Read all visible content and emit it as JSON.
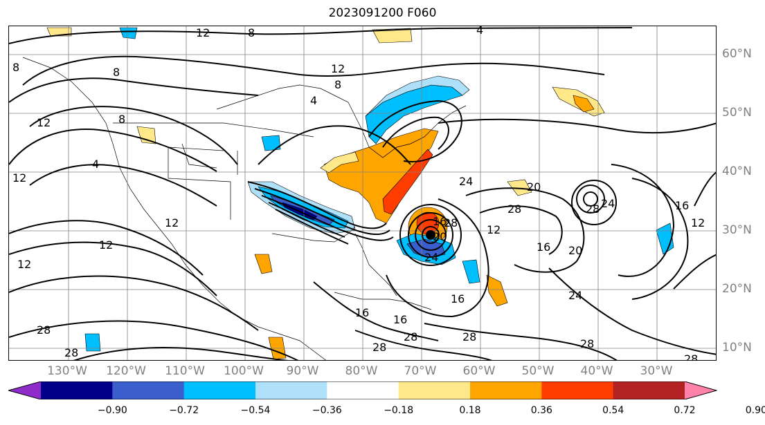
{
  "title": "2023091200 F060",
  "longitude_labels": [
    "130°W",
    "120°W",
    "110°W",
    "100°W",
    "90°W",
    "80°W",
    "70°W",
    "60°W",
    "50°W",
    "40°W",
    "30°W"
  ],
  "latitude_labels": [
    "60°N",
    "50°N",
    "40°N",
    "30°N",
    "20°N",
    "10°N"
  ],
  "contour_labels": [
    {
      "text": "12"
    },
    {
      "text": "8"
    },
    {
      "text": "4"
    },
    {
      "text": "12"
    },
    {
      "text": "4"
    },
    {
      "text": "8"
    },
    {
      "text": "8"
    },
    {
      "text": "12"
    },
    {
      "text": "12"
    },
    {
      "text": "12"
    },
    {
      "text": "12"
    },
    {
      "text": "8"
    },
    {
      "text": "4"
    },
    {
      "text": "12"
    },
    {
      "text": "16"
    },
    {
      "text": "20"
    },
    {
      "text": "24"
    },
    {
      "text": "28"
    },
    {
      "text": "12"
    },
    {
      "text": "16"
    },
    {
      "text": "20"
    },
    {
      "text": "28"
    },
    {
      "text": "24"
    },
    {
      "text": "16"
    },
    {
      "text": "12"
    },
    {
      "text": "24"
    },
    {
      "text": "28"
    },
    {
      "text": "28"
    },
    {
      "text": "28"
    },
    {
      "text": "16"
    },
    {
      "text": "16"
    },
    {
      "text": "28"
    },
    {
      "text": "16"
    },
    {
      "text": "28"
    },
    {
      "text": "28"
    },
    {
      "text": "8"
    },
    {
      "text": "28"
    },
    {
      "text": "24"
    },
    {
      "text": "20"
    },
    {
      "text": "28"
    }
  ],
  "colorbar": {
    "ticks": [
      "−0.90",
      "−0.72",
      "−0.54",
      "−0.36",
      "−0.18",
      "0.18",
      "0.36",
      "0.54",
      "0.72",
      "0.90"
    ],
    "colors": [
      "#8f2cc9",
      "#00008b",
      "#3a5fcd",
      "#00bfff",
      "#afe0fa",
      "#ffffff",
      "#ffe88a",
      "#ffa500",
      "#ff3d00",
      "#b22222",
      "#ff82ab"
    ]
  }
}
